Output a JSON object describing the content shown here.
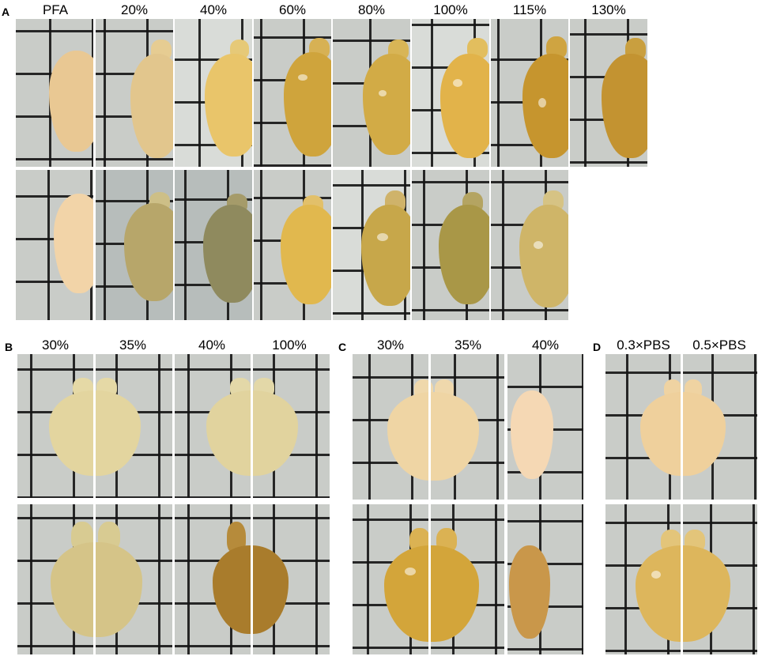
{
  "panels": {
    "A": {
      "letter": "A",
      "columns": [
        "PFA",
        "20%",
        "40%",
        "60%",
        "80%",
        "100%",
        "115%",
        "130%"
      ]
    },
    "B": {
      "letter": "B",
      "columns": [
        "30%",
        "35%",
        "40%",
        "100%"
      ]
    },
    "C": {
      "letter": "C",
      "columns": [
        "30%",
        "35%",
        "40%"
      ]
    },
    "D": {
      "letter": "D",
      "columns": [
        "0.3×PBS",
        "0.5×PBS"
      ]
    }
  },
  "colors": {
    "background": "#ffffff",
    "grid_paper": "#c9ccc8",
    "grid_lines": "#141414",
    "tissue_pfa": "#efcfa0",
    "tissue_cleared_yellow": "#d9b24a",
    "tissue_cleared_amber": "#b98a35"
  }
}
